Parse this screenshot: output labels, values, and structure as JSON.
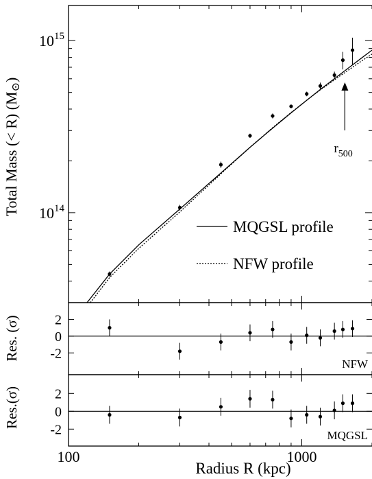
{
  "chart_data": [
    {
      "type": "line",
      "panel": "main",
      "xscale": "log",
      "yscale": "log",
      "xlim": [
        100,
        2000
      ],
      "ylim": [
        30000000000000,
        1600000000000000
      ],
      "ylabel": "Total Mass (< R) (M",
      "ylabel_sun": "⊙",
      "ylabel_close": ")",
      "y_ticks": [
        {
          "value": 100000000000000,
          "base": "10",
          "exp": "14"
        },
        {
          "value": 1000000000000000,
          "base": "10",
          "exp": "15"
        }
      ],
      "series": [
        {
          "name": "MQGSL profile",
          "style": "solid",
          "x": [
            120,
            150,
            200,
            300,
            450,
            600,
            750,
            900,
            1050,
            1200,
            1400,
            1600,
            1800,
            2000
          ],
          "y": [
            30000000000000,
            44000000000000,
            65000000000000,
            105000000000000,
            170000000000000,
            240000000000000,
            310000000000000,
            380000000000000,
            450000000000000,
            520000000000000,
            610000000000000,
            700000000000000,
            790000000000000,
            880000000000000
          ]
        },
        {
          "name": "NFW profile",
          "style": "dotted",
          "x": [
            124,
            150,
            200,
            300,
            450,
            600,
            750,
            900,
            1050,
            1200,
            1400,
            1600,
            1800,
            2000
          ],
          "y": [
            30000000000000,
            42000000000000,
            62000000000000,
            101000000000000,
            168000000000000,
            240000000000000,
            312000000000000,
            382000000000000,
            450000000000000,
            517000000000000,
            600000000000000,
            680000000000000,
            760000000000000,
            835000000000000
          ]
        }
      ],
      "points": [
        {
          "x": 150,
          "y": 44000000000000,
          "err": 1500000000000
        },
        {
          "x": 300,
          "y": 107000000000000,
          "err": 4000000000000
        },
        {
          "x": 450,
          "y": 190000000000000,
          "err": 8000000000000
        },
        {
          "x": 600,
          "y": 280000000000000,
          "err": 8000000000000
        },
        {
          "x": 750,
          "y": 365000000000000,
          "err": 12000000000000
        },
        {
          "x": 900,
          "y": 415000000000000,
          "err": 10000000000000
        },
        {
          "x": 1050,
          "y": 490000000000000,
          "err": 15000000000000
        },
        {
          "x": 1200,
          "y": 545000000000000,
          "err": 25000000000000
        },
        {
          "x": 1380,
          "y": 630000000000000,
          "err": 30000000000000
        },
        {
          "x": 1500,
          "y": 770000000000000,
          "err": 90000000000000
        },
        {
          "x": 1650,
          "y": 880000000000000,
          "err": 160000000000000
        }
      ],
      "annotation": {
        "text": "r",
        "sub": "500",
        "x": 1530
      },
      "legend": "bottom-right"
    },
    {
      "type": "scatter",
      "panel": "residual-nfw",
      "xscale": "log",
      "xlim": [
        100,
        2000
      ],
      "ylim": [
        -4.6,
        4.0
      ],
      "y_ticks": [
        "2",
        "0",
        "-2"
      ],
      "y_tick_values": [
        2,
        0,
        -2
      ],
      "label": "NFW",
      "x": [
        150,
        300,
        450,
        600,
        750,
        900,
        1050,
        1200,
        1380,
        1500,
        1650
      ],
      "y": [
        1.0,
        -1.8,
        -0.7,
        0.4,
        0.8,
        -0.7,
        0.1,
        -0.2,
        0.6,
        0.8,
        0.9
      ],
      "err": [
        1.0,
        1.0,
        1.0,
        1.0,
        1.0,
        1.0,
        1.0,
        1.0,
        1.0,
        1.0,
        1.0
      ]
    },
    {
      "type": "scatter",
      "panel": "residual-mqgsl",
      "xscale": "log",
      "xlim": [
        100,
        2000
      ],
      "ylim": [
        -3.9,
        4.1
      ],
      "y_ticks": [
        "2",
        "0",
        "-2"
      ],
      "y_tick_values": [
        2,
        0,
        -2
      ],
      "label": "MQGSL",
      "x": [
        150,
        300,
        450,
        600,
        750,
        900,
        1050,
        1200,
        1380,
        1500,
        1650
      ],
      "y": [
        -0.4,
        -0.7,
        0.5,
        1.4,
        1.3,
        -0.8,
        -0.4,
        -0.6,
        0.1,
        0.9,
        0.9
      ],
      "err": [
        1.0,
        1.0,
        1.0,
        1.0,
        1.0,
        1.0,
        1.0,
        1.0,
        1.0,
        1.0,
        1.0
      ]
    }
  ],
  "residual_ylabel_1": "Res. (σ)",
  "residual_ylabel_2": "Res.(σ)",
  "x_axis": {
    "label": "Radius  R (kpc)",
    "ticks": [
      {
        "value": 100,
        "label": "100"
      },
      {
        "value": 1000,
        "label": "1000"
      }
    ]
  }
}
